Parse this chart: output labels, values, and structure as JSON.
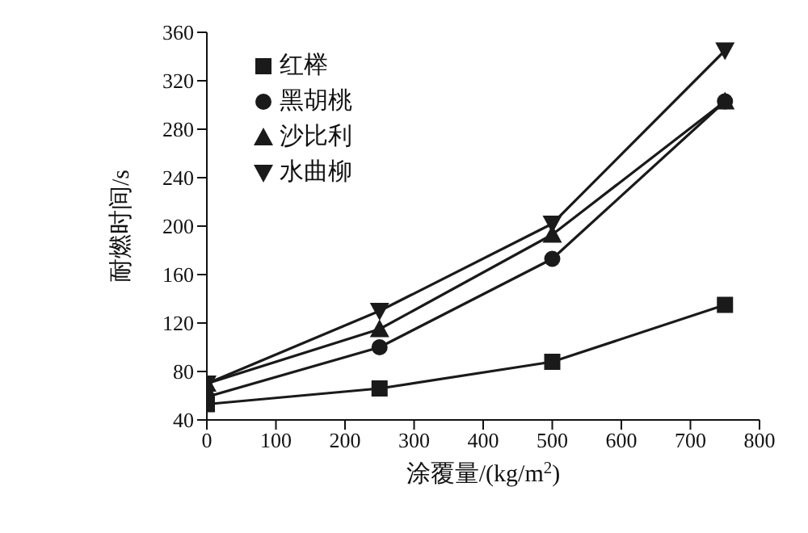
{
  "chart_data": {
    "type": "line",
    "xlabel": "涂覆量/(kg/m$^{2}$)",
    "ylabel": "耐燃时间/s",
    "x": [
      0,
      250,
      500,
      750
    ],
    "series": [
      {
        "name": "红榉",
        "color": "#1a1a1a",
        "marker": "square",
        "values": [
          53,
          66,
          88,
          135
        ]
      },
      {
        "name": "黑胡桃",
        "color": "#1a1a1a",
        "marker": "circle",
        "values": [
          59,
          100,
          173,
          303
        ]
      },
      {
        "name": "沙比利",
        "color": "#1a1a1a",
        "marker": "triangle",
        "values": [
          70,
          115,
          193,
          303
        ]
      },
      {
        "name": "水曲柳",
        "color": "#1a1a1a",
        "marker": "triangle-down",
        "values": [
          70,
          130,
          202,
          345
        ]
      }
    ],
    "xlim": [
      0,
      800
    ],
    "xticks": [
      0,
      100,
      200,
      300,
      400,
      500,
      600,
      700,
      800
    ],
    "ylim": [
      40,
      360
    ],
    "yticks": [
      40,
      80,
      120,
      160,
      200,
      240,
      280,
      320,
      360
    ],
    "grid": false,
    "legend": "top left",
    "line_style": "solid"
  }
}
